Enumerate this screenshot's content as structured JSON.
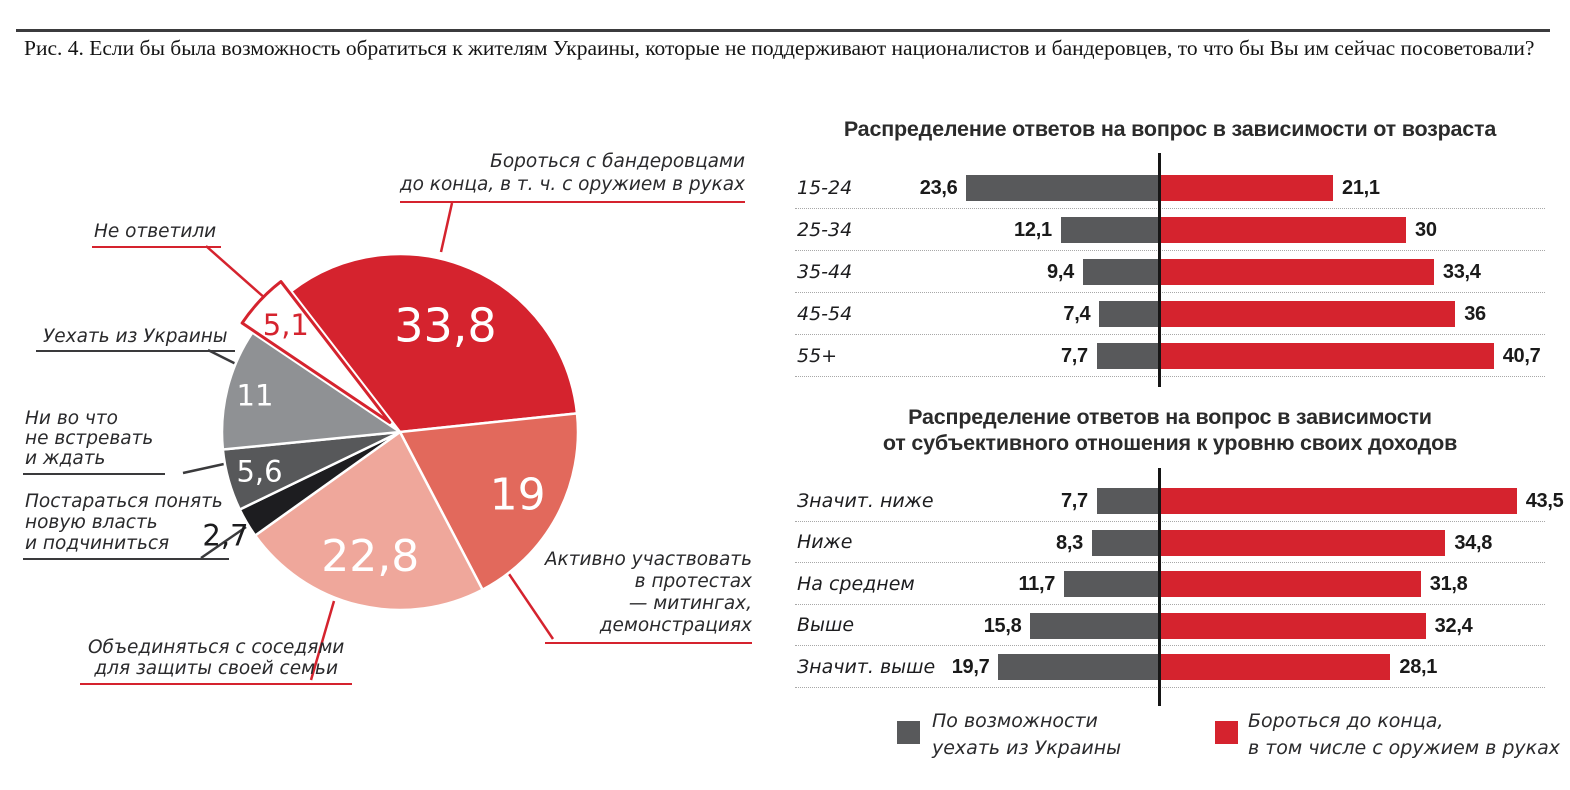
{
  "main_title": "Рис. 4. Если бы была возможность обратиться к жителям Украины, которые не поддерживают националистов и бандеровцев, то что бы  Вы им сейчас посоветовали?",
  "colors": {
    "red": "#d5232e",
    "coral": "#e2695c",
    "pink": "#efa79b",
    "near_black": "#1d1d20",
    "dark_gray": "#57585a",
    "gray": "#8f9194",
    "bar_gray": "#58595b",
    "dark": "#3a3a3c",
    "white": "#ffffff"
  },
  "chart_data": [
    {
      "type": "pie",
      "title": "",
      "start_angle_deg": -37.7,
      "units": "percent",
      "slices": [
        {
          "label": "Бороться с бандеровцами до конца, в т. ч. с оружием в руках",
          "label_lines": [
            "Бороться с бандеровцами",
            "до конца, в т. ч. с оружием в руках"
          ],
          "value": 33.8,
          "display": "33,8",
          "color": "#d5232e"
        },
        {
          "label": "Активно участвовать в протестах — митингах, демонстрациях",
          "label_lines": [
            "Активно участвовать",
            "в протестах",
            "— митингах,",
            "демонстрациях"
          ],
          "value": 19,
          "display": "19",
          "color": "#e2695c"
        },
        {
          "label": "Объединяться с соседями для защиты своей семьи",
          "label_lines": [
            "Объединяться с соседями",
            "для защиты своей семьи"
          ],
          "value": 22.8,
          "display": "22,8",
          "color": "#efa79b"
        },
        {
          "label": "Постараться понять новую власть и подчиниться",
          "label_lines": [
            "Постараться понять",
            "новую власть",
            "и подчиниться"
          ],
          "value": 2.7,
          "display": "2,7",
          "color": "#1d1d20"
        },
        {
          "label": "Ни во что не встревать и ждать",
          "label_lines": [
            "Ни во что",
            "не встревать",
            "и ждать"
          ],
          "value": 5.6,
          "display": "5,6",
          "color": "#57585a"
        },
        {
          "label": "Уехать из Украины",
          "label_lines": [
            "Уехать из Украины"
          ],
          "value": 11,
          "display": "11",
          "color": "#8f9194"
        },
        {
          "label": "Не ответили",
          "label_lines": [
            "Не ответили"
          ],
          "value": 5.1,
          "display": "5,1",
          "color": "#ffffff"
        }
      ]
    },
    {
      "type": "bar",
      "title": "Распределение ответов на вопрос в зависимости от возраста",
      "orientation": "horizontal-diverging",
      "categories": [
        "15-24",
        "25-34",
        "35-44",
        "45-54",
        "55+"
      ],
      "series": [
        {
          "name": "По возможности уехать из Украины",
          "side": "left",
          "color": "#58595b",
          "values": [
            23.6,
            12.1,
            9.4,
            7.4,
            7.7
          ],
          "display": [
            "23,6",
            "12,1",
            "9,4",
            "7,4",
            "7,7"
          ]
        },
        {
          "name": "Бороться до конца, в том числе с оружием в руках",
          "side": "right",
          "color": "#d5232e",
          "values": [
            21.1,
            30,
            33.4,
            36,
            40.7
          ],
          "display": [
            "21,1",
            "30",
            "33,4",
            "36",
            "40,7"
          ]
        }
      ]
    },
    {
      "type": "bar",
      "title": "Распределение ответов на вопрос в зависимости от субъективного отношения к уровню своих доходов",
      "title_lines": [
        "Распределение ответов на вопрос в зависимости",
        "от субъективного отношения к уровню своих доходов"
      ],
      "orientation": "horizontal-diverging",
      "categories": [
        "Значит. ниже",
        "Ниже",
        "На среднем",
        "Выше",
        "Значит. выше"
      ],
      "series": [
        {
          "name": "По возможности уехать из Украины",
          "side": "left",
          "color": "#58595b",
          "values": [
            7.7,
            8.3,
            11.7,
            15.8,
            19.7
          ],
          "display": [
            "7,7",
            "8,3",
            "11,7",
            "15,8",
            "19,7"
          ]
        },
        {
          "name": "Бороться до конца, в том числе с оружием в руках",
          "side": "right",
          "color": "#d5232e",
          "values": [
            43.5,
            34.8,
            31.8,
            32.4,
            28.1
          ],
          "display": [
            "43,5",
            "34,8",
            "31,8",
            "32,4",
            "28,1"
          ]
        }
      ]
    }
  ],
  "legend": {
    "items": [
      {
        "color": "#58595b",
        "lines": [
          "По возможности",
          "уехать из Украины"
        ]
      },
      {
        "color": "#d5232e",
        "lines": [
          "Бороться до конца,",
          "в том числе с оружием в руках"
        ]
      }
    ]
  }
}
